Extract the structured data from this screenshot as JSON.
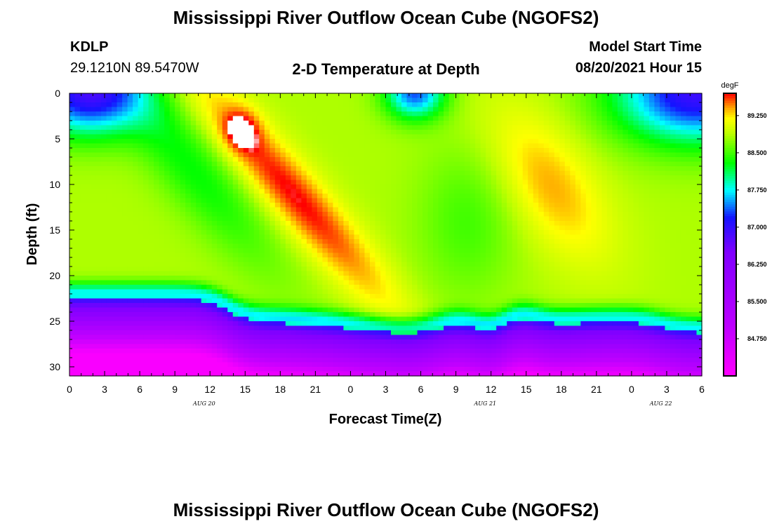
{
  "header": {
    "title_top": "Mississippi River Outflow Ocean Cube (NGOFS2)",
    "title_bottom": "Mississippi River Outflow Ocean Cube (NGOFS2)",
    "station": "KDLP",
    "coords": "29.1210N  89.5470W",
    "subtitle": "2-D Temperature at Depth",
    "model_start_label": "Model Start Time",
    "model_start_value": "08/20/2021 Hour 15"
  },
  "chart_data": {
    "type": "heatmap",
    "title": "2-D Temperature at Depth",
    "xlabel": "Forecast Time(Z)",
    "ylabel": "Depth (ft)",
    "x_tick_labels": [
      "0",
      "3",
      "6",
      "9",
      "12",
      "15",
      "18",
      "21",
      "0",
      "3",
      "6",
      "9",
      "12",
      "15",
      "18",
      "21",
      "0",
      "3",
      "6"
    ],
    "x_range_hours": [
      0,
      54
    ],
    "date_labels": [
      {
        "text": "AUG 20",
        "hour": 11.5
      },
      {
        "text": "AUG 21",
        "hour": 35.5
      },
      {
        "text": "AUG 22",
        "hour": 50.5
      }
    ],
    "y_ticks": [
      0,
      5,
      10,
      15,
      20,
      25,
      30
    ],
    "y_range_ft": [
      0,
      31
    ],
    "y_reversed": true,
    "colorbar": {
      "unit": "degF",
      "range": [
        84.0,
        89.7
      ],
      "ticks": [
        "89.250",
        "88.500",
        "87.750",
        "87.000",
        "86.250",
        "85.500",
        "84.750"
      ]
    },
    "temperature_features": {
      "bottom_cold_layer_ft": 25,
      "warm_core_max_degF": 89.7,
      "warm_core_time_hours": 14.5,
      "warm_core_depth_ft": 4
    }
  }
}
